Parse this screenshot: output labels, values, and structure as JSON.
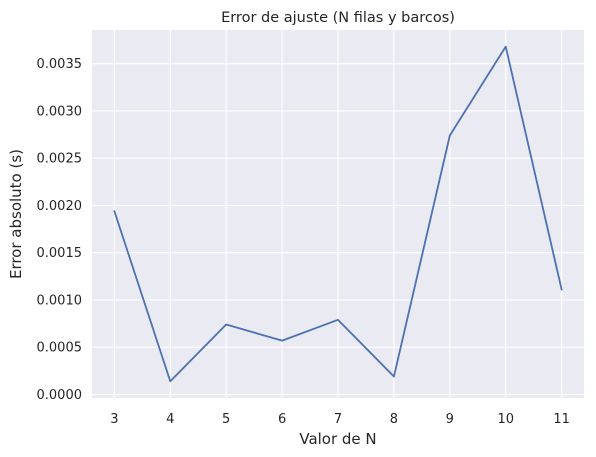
{
  "chart_data": {
    "type": "line",
    "title": "Error de ajuste (N filas y barcos)",
    "xlabel": "Valor de N",
    "ylabel": "Error absoluto (s)",
    "x": [
      3,
      4,
      5,
      6,
      7,
      8,
      9,
      10,
      11
    ],
    "series": [
      {
        "values": [
          0.00194,
          0.00014,
          0.00074,
          0.00057,
          0.00079,
          0.00019,
          0.00274,
          0.00368,
          0.00111
        ],
        "color": "#4c72b0"
      }
    ],
    "xticks": [
      "3",
      "4",
      "5",
      "6",
      "7",
      "8",
      "9",
      "10",
      "11"
    ],
    "yticks": [
      "0.0000",
      "0.0005",
      "0.0010",
      "0.0015",
      "0.0020",
      "0.0025",
      "0.0030",
      "0.0035"
    ],
    "ytick_values": [
      0,
      0.0005,
      0.001,
      0.0015,
      0.002,
      0.0025,
      0.003,
      0.0035
    ],
    "xlim": [
      2.6,
      11.4
    ],
    "ylim": [
      -3.7e-05,
      0.003856
    ],
    "grid": true,
    "colors": {
      "plot_background": "#eaeaf2",
      "grid": "#ffffff",
      "text": "#262626"
    }
  }
}
